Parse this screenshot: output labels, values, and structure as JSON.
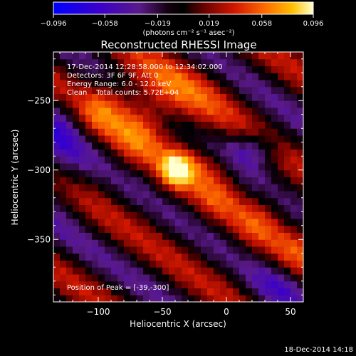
{
  "chart_data": {
    "type": "heatmap",
    "title": "Reconstructed RHESSI Image",
    "xlabel": "Heliocentric X (arcsec)",
    "ylabel": "Heliocentric Y (arcsec)",
    "xlim": [
      -135,
      60
    ],
    "ylim": [
      -395,
      -215
    ],
    "x_ticks": [
      -100,
      -50,
      0,
      50
    ],
    "y_ticks": [
      -250,
      -300,
      -350
    ],
    "x_tick_labels": [
      "−100",
      "−50",
      "0",
      "50"
    ],
    "y_tick_labels": [
      "−250",
      "−300",
      "−350"
    ],
    "grid": false,
    "colorbar": {
      "min": -0.096,
      "max": 0.096,
      "ticks": [
        -0.096,
        -0.058,
        -0.019,
        0.019,
        0.058,
        0.096
      ],
      "tick_labels": [
        "−0.096",
        "−0.058",
        "−0.019",
        "0.019",
        "0.058",
        "0.096"
      ],
      "unit_label": "(photons cm⁻² s⁻¹ asec⁻²)",
      "colors": [
        "#0000ff",
        "#3c00c8",
        "#6a1a9a",
        "#000000",
        "#7a0000",
        "#d41800",
        "#ff6a00",
        "#ffc000",
        "#ffffd0"
      ]
    },
    "annotations": {
      "time_range": "17-Dec-2014 12:28:58.000 to 12:34:02.000",
      "detectors": "Detectors: 3F 6F 9F, Att 0",
      "energy": "Energy Range: 6.0 - 12.0 keV",
      "clean": "Clean    Total counts: 5.72E+04",
      "peak": "Position of Peak = [-39,-300]"
    },
    "peak": {
      "x": -39,
      "y": -300
    }
  },
  "footer": {
    "timestamp": "18-Dec-2014 14:18"
  }
}
